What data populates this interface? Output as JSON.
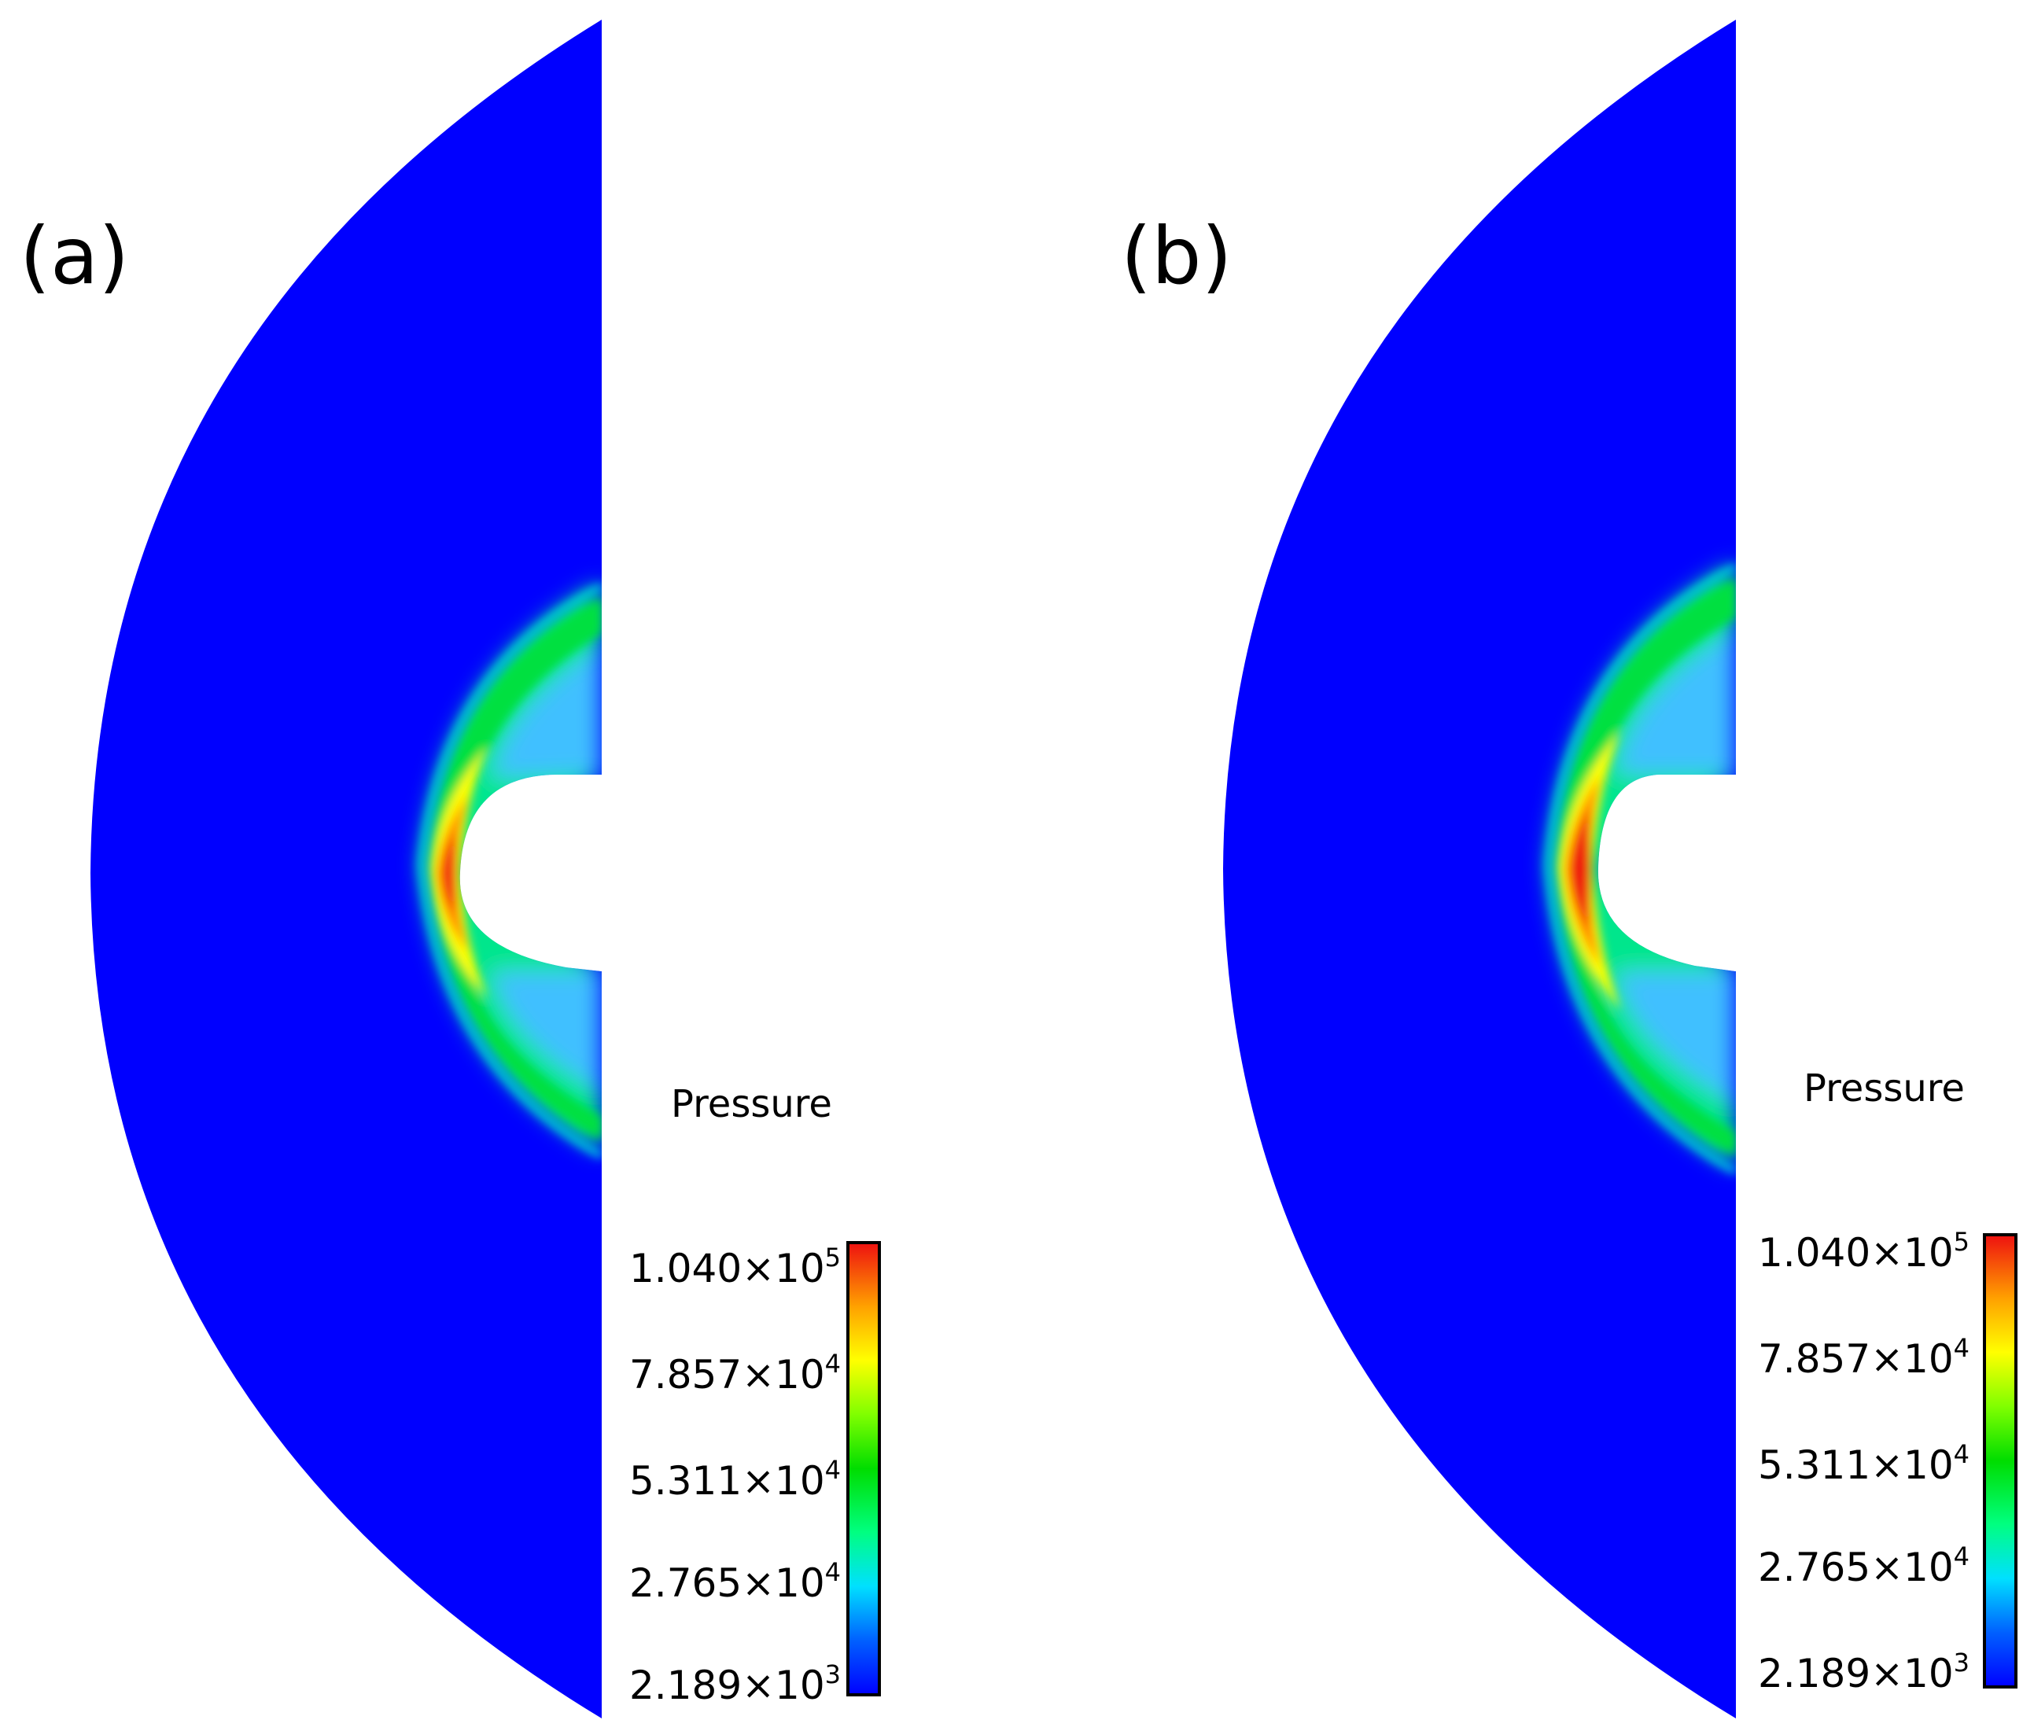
{
  "panels": [
    {
      "label": "(a)",
      "legend": {
        "title": "Pressure",
        "ticks": [
          {
            "mantissa": "1.040",
            "exp": "5"
          },
          {
            "mantissa": "7.857",
            "exp": "4"
          },
          {
            "mantissa": "5.311",
            "exp": "4"
          },
          {
            "mantissa": "2.765",
            "exp": "4"
          },
          {
            "mantissa": "2.189",
            "exp": "3"
          }
        ]
      }
    },
    {
      "label": "(b)",
      "legend": {
        "title": "Pressure",
        "ticks": [
          {
            "mantissa": "1.040",
            "exp": "5"
          },
          {
            "mantissa": "7.857",
            "exp": "4"
          },
          {
            "mantissa": "5.311",
            "exp": "4"
          },
          {
            "mantissa": "2.765",
            "exp": "4"
          },
          {
            "mantissa": "2.189",
            "exp": "3"
          }
        ]
      }
    }
  ],
  "times_symbol": "×",
  "ten": "10",
  "colors": {
    "freestream": "#0000ff",
    "colormap": [
      "#0000ff",
      "#00a0ff",
      "#00ffe0",
      "#00ff60",
      "#40ff00",
      "#c0ff00",
      "#ffff00",
      "#ffa000",
      "#ff3000",
      "#ee1010"
    ]
  }
}
